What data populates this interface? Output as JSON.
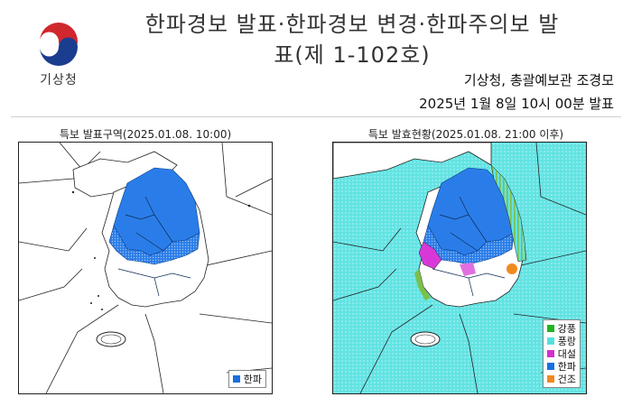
{
  "agency": {
    "logo_text": "기상청"
  },
  "header": {
    "title_line1": "한파경보 발표·한파경보 변경·한파주의보 발",
    "title_line2": "표(제 1-102호)",
    "issuer": "기상청, 총괄예보관 조경모",
    "issued_at": "2025년 1월 8일 10시 00분 발표"
  },
  "left_map": {
    "caption": "특보 발표구역(2025.01.08. 10:00)",
    "legend": [
      {
        "label": "한파",
        "color": "#1a6fe0"
      }
    ]
  },
  "right_map": {
    "caption": "특보 발효현황(2025.01.08. 21:00 이후)",
    "legend": [
      {
        "label": "강풍",
        "color": "#22b422"
      },
      {
        "label": "풍랑",
        "color": "#55e0e0"
      },
      {
        "label": "대설",
        "color": "#d030d0"
      },
      {
        "label": "한파",
        "color": "#1a6fe0"
      },
      {
        "label": "건조",
        "color": "#f08a20"
      }
    ]
  },
  "colors": {
    "cold_wave_warning": "#1a6fe0",
    "cold_wave_advisory": "#7fb0f0",
    "sea_wave_advisory": "#5de0e0"
  }
}
